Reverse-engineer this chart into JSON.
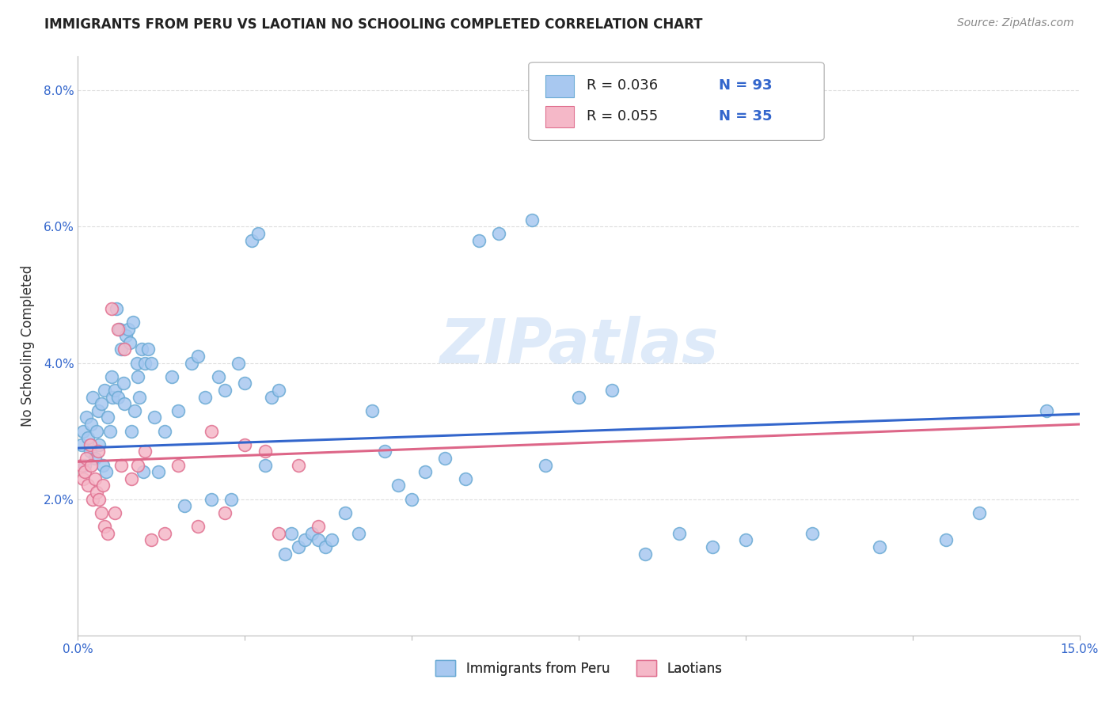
{
  "title": "IMMIGRANTS FROM PERU VS LAOTIAN NO SCHOOLING COMPLETED CORRELATION CHART",
  "source": "Source: ZipAtlas.com",
  "ylabel": "No Schooling Completed",
  "xlim": [
    0.0,
    15.0
  ],
  "ylim": [
    0.0,
    8.5
  ],
  "yticks": [
    2.0,
    4.0,
    6.0,
    8.0
  ],
  "series1_color": "#a8c8f0",
  "series1_edge": "#6aaad4",
  "series2_color": "#f5b8c8",
  "series2_edge": "#e07090",
  "line1_color": "#3366cc",
  "line2_color": "#dd6688",
  "legend_label1": "Immigrants from Peru",
  "legend_label2": "Laotians",
  "watermark": "ZIPatlas",
  "series1_x": [
    0.05,
    0.08,
    0.1,
    0.12,
    0.15,
    0.18,
    0.2,
    0.22,
    0.25,
    0.28,
    0.3,
    0.32,
    0.35,
    0.38,
    0.4,
    0.42,
    0.45,
    0.48,
    0.5,
    0.52,
    0.55,
    0.58,
    0.6,
    0.62,
    0.65,
    0.68,
    0.7,
    0.72,
    0.75,
    0.78,
    0.8,
    0.82,
    0.85,
    0.88,
    0.9,
    0.92,
    0.95,
    0.98,
    1.0,
    1.05,
    1.1,
    1.15,
    1.2,
    1.3,
    1.4,
    1.5,
    1.6,
    1.7,
    1.8,
    1.9,
    2.0,
    2.1,
    2.2,
    2.3,
    2.4,
    2.5,
    2.6,
    2.7,
    2.8,
    2.9,
    3.0,
    3.1,
    3.2,
    3.3,
    3.4,
    3.5,
    3.6,
    3.7,
    3.8,
    4.0,
    4.2,
    4.4,
    4.6,
    4.8,
    5.0,
    5.2,
    5.5,
    5.8,
    6.0,
    6.3,
    6.8,
    7.0,
    7.5,
    8.0,
    8.5,
    9.0,
    9.5,
    10.0,
    11.0,
    12.0,
    13.0,
    13.5,
    14.5
  ],
  "series1_y": [
    2.8,
    3.0,
    2.5,
    3.2,
    2.9,
    2.7,
    3.1,
    3.5,
    2.6,
    3.0,
    3.3,
    2.8,
    3.4,
    2.5,
    3.6,
    2.4,
    3.2,
    3.0,
    3.8,
    3.5,
    3.6,
    4.8,
    3.5,
    4.5,
    4.2,
    3.7,
    3.4,
    4.4,
    4.5,
    4.3,
    3.0,
    4.6,
    3.3,
    4.0,
    3.8,
    3.5,
    4.2,
    2.4,
    4.0,
    4.2,
    4.0,
    3.2,
    2.4,
    3.0,
    3.8,
    3.3,
    1.9,
    4.0,
    4.1,
    3.5,
    2.0,
    3.8,
    3.6,
    2.0,
    4.0,
    3.7,
    5.8,
    5.9,
    2.5,
    3.5,
    3.6,
    1.2,
    1.5,
    1.3,
    1.4,
    1.5,
    1.4,
    1.3,
    1.4,
    1.8,
    1.5,
    3.3,
    2.7,
    2.2,
    2.0,
    2.4,
    2.6,
    2.3,
    5.8,
    5.9,
    6.1,
    2.5,
    3.5,
    3.6,
    1.2,
    1.5,
    1.3,
    1.4,
    1.5,
    1.3,
    1.4,
    1.8,
    3.3
  ],
  "series2_x": [
    0.05,
    0.08,
    0.1,
    0.12,
    0.15,
    0.18,
    0.2,
    0.22,
    0.25,
    0.28,
    0.3,
    0.32,
    0.35,
    0.38,
    0.4,
    0.45,
    0.5,
    0.55,
    0.6,
    0.65,
    0.7,
    0.8,
    0.9,
    1.0,
    1.1,
    1.3,
    1.5,
    1.8,
    2.0,
    2.2,
    2.5,
    2.8,
    3.0,
    3.3,
    3.6
  ],
  "series2_y": [
    2.5,
    2.3,
    2.4,
    2.6,
    2.2,
    2.8,
    2.5,
    2.0,
    2.3,
    2.1,
    2.7,
    2.0,
    1.8,
    2.2,
    1.6,
    1.5,
    4.8,
    1.8,
    4.5,
    2.5,
    4.2,
    2.3,
    2.5,
    2.7,
    1.4,
    1.5,
    2.5,
    1.6,
    3.0,
    1.8,
    2.8,
    2.7,
    1.5,
    2.5,
    1.6
  ],
  "line1_x": [
    0.0,
    15.0
  ],
  "line1_y": [
    2.75,
    3.25
  ],
  "line2_x": [
    0.0,
    15.0
  ],
  "line2_y": [
    2.55,
    3.1
  ],
  "background_color": "#ffffff",
  "grid_color": "#dddddd"
}
